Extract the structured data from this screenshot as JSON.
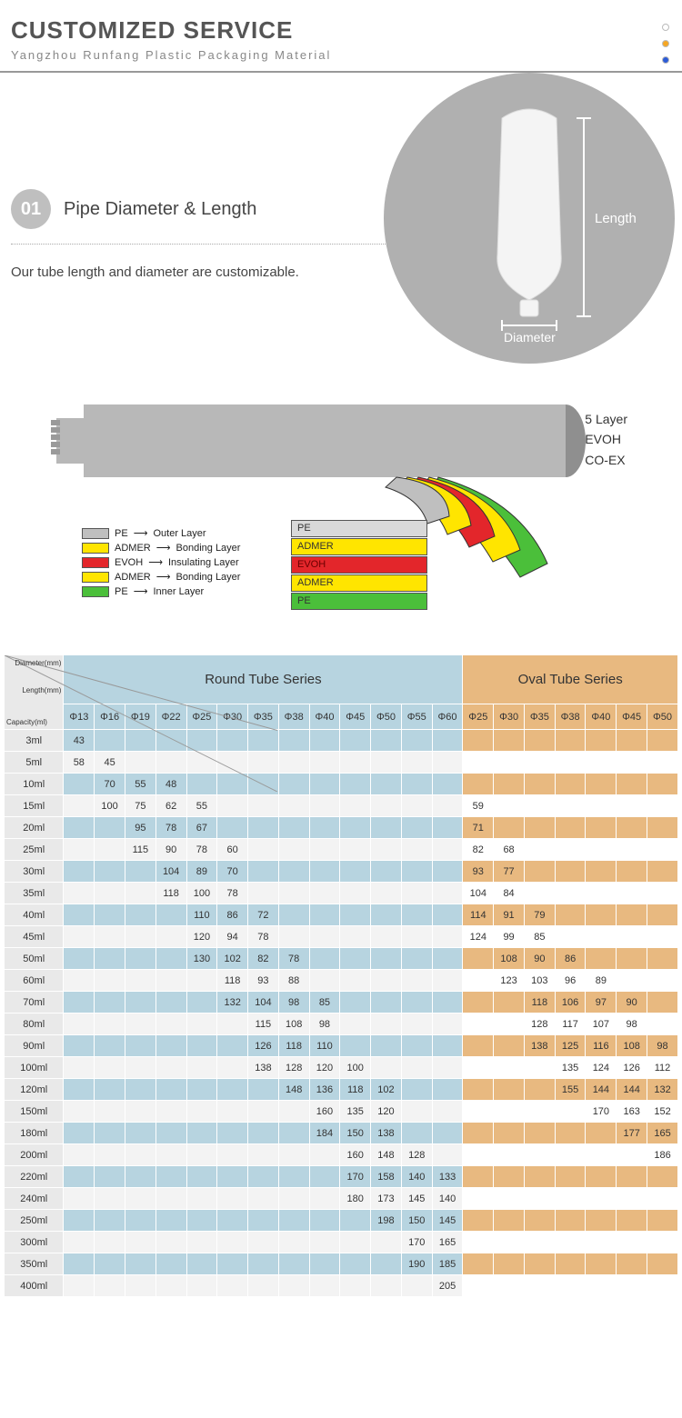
{
  "header": {
    "title": "CUSTOMIZED SERVICE",
    "subtitle": "Yangzhou Runfang Plastic Packaging Material",
    "dot_colors": [
      "#ffffff",
      "#f5a623",
      "#2b5bd7"
    ],
    "dot_border": "#bbbbbb"
  },
  "section01": {
    "number": "01",
    "title": "Pipe Diameter & Length",
    "desc": "Our tube length and diameter are customizable.",
    "circle_color": "#b0b0b0",
    "label_length": "Length",
    "label_diameter": "Diameter"
  },
  "layer_diagram": {
    "side_labels": [
      "5 Layer",
      "EVOH",
      "CO-EX"
    ],
    "legend": [
      {
        "color": "#bfbfbf",
        "name": "PE",
        "role": "Outer Layer"
      },
      {
        "color": "#ffe500",
        "name": "ADMER",
        "role": "Bonding Layer"
      },
      {
        "color": "#e3262b",
        "name": "EVOH",
        "role": "Insulating Layer"
      },
      {
        "color": "#ffe500",
        "name": "ADMER",
        "role": "Bonding Layer"
      },
      {
        "color": "#4bbf3a",
        "name": "PE",
        "role": "Inner Layer"
      }
    ],
    "bars": [
      {
        "bg": "#d9d9d9",
        "text": "PE",
        "fg": "#333"
      },
      {
        "bg": "#ffe500",
        "text": "ADMER",
        "fg": "#333"
      },
      {
        "bg": "#e3262b",
        "text": "EVOH",
        "fg": "#6a0000"
      },
      {
        "bg": "#ffe500",
        "text": "ADMER",
        "fg": "#333"
      },
      {
        "bg": "#4bbf3a",
        "text": "PE",
        "fg": "#333"
      }
    ]
  },
  "spec_table": {
    "corner_labels": [
      "Diameter(mm)",
      "Length(mm)",
      "Capacity(ml)"
    ],
    "group_round": "Round Tube Series",
    "group_oval": "Oval Tube Series",
    "colors": {
      "round_header": "#b7d4e0",
      "oval_header": "#e8b980",
      "capacity_bg": "#e9e9e9",
      "round_alt": "#b7d4e0",
      "round_plain": "#f3f3f3",
      "oval_alt": "#e8b980",
      "oval_plain": "#ffffff",
      "border": "#ffffff"
    },
    "round_cols": [
      "Φ13",
      "Φ16",
      "Φ19",
      "Φ22",
      "Φ25",
      "Φ30",
      "Φ35",
      "Φ38",
      "Φ40",
      "Φ45",
      "Φ50",
      "Φ55",
      "Φ60"
    ],
    "oval_cols": [
      "Φ25",
      "Φ30",
      "Φ35",
      "Φ38",
      "Φ40",
      "Φ45",
      "Φ50"
    ],
    "rows": [
      {
        "cap": "3ml",
        "alt": true,
        "round": [
          "43",
          "",
          "",
          "",
          "",
          "",
          "",
          "",
          "",
          "",
          "",
          "",
          ""
        ],
        "oval": [
          "",
          "",
          "",
          "",
          "",
          "",
          ""
        ]
      },
      {
        "cap": "5ml",
        "alt": false,
        "round": [
          "58",
          "45",
          "",
          "",
          "",
          "",
          "",
          "",
          "",
          "",
          "",
          "",
          ""
        ],
        "oval": [
          "",
          "",
          "",
          "",
          "",
          "",
          ""
        ]
      },
      {
        "cap": "10ml",
        "alt": true,
        "round": [
          "",
          "70",
          "55",
          "48",
          "",
          "",
          "",
          "",
          "",
          "",
          "",
          "",
          ""
        ],
        "oval": [
          "",
          "",
          "",
          "",
          "",
          "",
          ""
        ]
      },
      {
        "cap": "15ml",
        "alt": false,
        "round": [
          "",
          "100",
          "75",
          "62",
          "55",
          "",
          "",
          "",
          "",
          "",
          "",
          "",
          ""
        ],
        "oval": [
          "59",
          "",
          "",
          "",
          "",
          "",
          ""
        ]
      },
      {
        "cap": "20ml",
        "alt": true,
        "round": [
          "",
          "",
          "95",
          "78",
          "67",
          "",
          "",
          "",
          "",
          "",
          "",
          "",
          ""
        ],
        "oval": [
          "71",
          "",
          "",
          "",
          "",
          "",
          ""
        ]
      },
      {
        "cap": "25ml",
        "alt": false,
        "round": [
          "",
          "",
          "115",
          "90",
          "78",
          "60",
          "",
          "",
          "",
          "",
          "",
          "",
          ""
        ],
        "oval": [
          "82",
          "68",
          "",
          "",
          "",
          "",
          ""
        ]
      },
      {
        "cap": "30ml",
        "alt": true,
        "round": [
          "",
          "",
          "",
          "104",
          "89",
          "70",
          "",
          "",
          "",
          "",
          "",
          "",
          ""
        ],
        "oval": [
          "93",
          "77",
          "",
          "",
          "",
          "",
          ""
        ]
      },
      {
        "cap": "35ml",
        "alt": false,
        "round": [
          "",
          "",
          "",
          "118",
          "100",
          "78",
          "",
          "",
          "",
          "",
          "",
          "",
          ""
        ],
        "oval": [
          "104",
          "84",
          "",
          "",
          "",
          "",
          ""
        ]
      },
      {
        "cap": "40ml",
        "alt": true,
        "round": [
          "",
          "",
          "",
          "",
          "110",
          "86",
          "72",
          "",
          "",
          "",
          "",
          "",
          ""
        ],
        "oval": [
          "114",
          "91",
          "79",
          "",
          "",
          "",
          ""
        ]
      },
      {
        "cap": "45ml",
        "alt": false,
        "round": [
          "",
          "",
          "",
          "",
          "120",
          "94",
          "78",
          "",
          "",
          "",
          "",
          "",
          ""
        ],
        "oval": [
          "124",
          "99",
          "85",
          "",
          "",
          "",
          ""
        ]
      },
      {
        "cap": "50ml",
        "alt": true,
        "round": [
          "",
          "",
          "",
          "",
          "130",
          "102",
          "82",
          "78",
          "",
          "",
          "",
          "",
          ""
        ],
        "oval": [
          "",
          "108",
          "90",
          "86",
          "",
          "",
          ""
        ]
      },
      {
        "cap": "60ml",
        "alt": false,
        "round": [
          "",
          "",
          "",
          "",
          "",
          "118",
          "93",
          "88",
          "",
          "",
          "",
          "",
          ""
        ],
        "oval": [
          "",
          "123",
          "103",
          "96",
          "89",
          "",
          ""
        ]
      },
      {
        "cap": "70ml",
        "alt": true,
        "round": [
          "",
          "",
          "",
          "",
          "",
          "132",
          "104",
          "98",
          "85",
          "",
          "",
          "",
          ""
        ],
        "oval": [
          "",
          "",
          "118",
          "106",
          "97",
          "90",
          ""
        ]
      },
      {
        "cap": "80ml",
        "alt": false,
        "round": [
          "",
          "",
          "",
          "",
          "",
          "",
          "115",
          "108",
          "98",
          "",
          "",
          "",
          ""
        ],
        "oval": [
          "",
          "",
          "128",
          "117",
          "107",
          "98",
          ""
        ]
      },
      {
        "cap": "90ml",
        "alt": true,
        "round": [
          "",
          "",
          "",
          "",
          "",
          "",
          "126",
          "118",
          "110",
          "",
          "",
          "",
          ""
        ],
        "oval": [
          "",
          "",
          "138",
          "125",
          "116",
          "108",
          "98"
        ]
      },
      {
        "cap": "100ml",
        "alt": false,
        "round": [
          "",
          "",
          "",
          "",
          "",
          "",
          "138",
          "128",
          "120",
          "100",
          "",
          "",
          ""
        ],
        "oval": [
          "",
          "",
          "",
          "135",
          "124",
          "126",
          "112"
        ]
      },
      {
        "cap": "120ml",
        "alt": true,
        "round": [
          "",
          "",
          "",
          "",
          "",
          "",
          "",
          "148",
          "136",
          "118",
          "102",
          "",
          ""
        ],
        "oval": [
          "",
          "",
          "",
          "155",
          "144",
          "144",
          "132"
        ]
      },
      {
        "cap": "150ml",
        "alt": false,
        "round": [
          "",
          "",
          "",
          "",
          "",
          "",
          "",
          "",
          "160",
          "135",
          "120",
          "",
          ""
        ],
        "oval": [
          "",
          "",
          "",
          "",
          "170",
          "163",
          "152"
        ]
      },
      {
        "cap": "180ml",
        "alt": true,
        "round": [
          "",
          "",
          "",
          "",
          "",
          "",
          "",
          "",
          "184",
          "150",
          "138",
          "",
          ""
        ],
        "oval": [
          "",
          "",
          "",
          "",
          "",
          "177",
          "165"
        ]
      },
      {
        "cap": "200ml",
        "alt": false,
        "round": [
          "",
          "",
          "",
          "",
          "",
          "",
          "",
          "",
          "",
          "160",
          "148",
          "128",
          ""
        ],
        "oval": [
          "",
          "",
          "",
          "",
          "",
          "",
          "186"
        ]
      },
      {
        "cap": "220ml",
        "alt": true,
        "round": [
          "",
          "",
          "",
          "",
          "",
          "",
          "",
          "",
          "",
          "170",
          "158",
          "140",
          "133"
        ],
        "oval": [
          "",
          "",
          "",
          "",
          "",
          "",
          ""
        ]
      },
      {
        "cap": "240ml",
        "alt": false,
        "round": [
          "",
          "",
          "",
          "",
          "",
          "",
          "",
          "",
          "",
          "180",
          "173",
          "145",
          "140"
        ],
        "oval": [
          "",
          "",
          "",
          "",
          "",
          "",
          ""
        ]
      },
      {
        "cap": "250ml",
        "alt": true,
        "round": [
          "",
          "",
          "",
          "",
          "",
          "",
          "",
          "",
          "",
          "",
          "198",
          "150",
          "145"
        ],
        "oval": [
          "",
          "",
          "",
          "",
          "",
          "",
          ""
        ]
      },
      {
        "cap": "300ml",
        "alt": false,
        "round": [
          "",
          "",
          "",
          "",
          "",
          "",
          "",
          "",
          "",
          "",
          "",
          "170",
          "165"
        ],
        "oval": [
          "",
          "",
          "",
          "",
          "",
          "",
          ""
        ]
      },
      {
        "cap": "350ml",
        "alt": true,
        "round": [
          "",
          "",
          "",
          "",
          "",
          "",
          "",
          "",
          "",
          "",
          "",
          "190",
          "185"
        ],
        "oval": [
          "",
          "",
          "",
          "",
          "",
          "",
          ""
        ]
      },
      {
        "cap": "400ml",
        "alt": false,
        "round": [
          "",
          "",
          "",
          "",
          "",
          "",
          "",
          "",
          "",
          "",
          "",
          "",
          "205"
        ],
        "oval": [
          "",
          "",
          "",
          "",
          "",
          "",
          ""
        ]
      }
    ]
  }
}
